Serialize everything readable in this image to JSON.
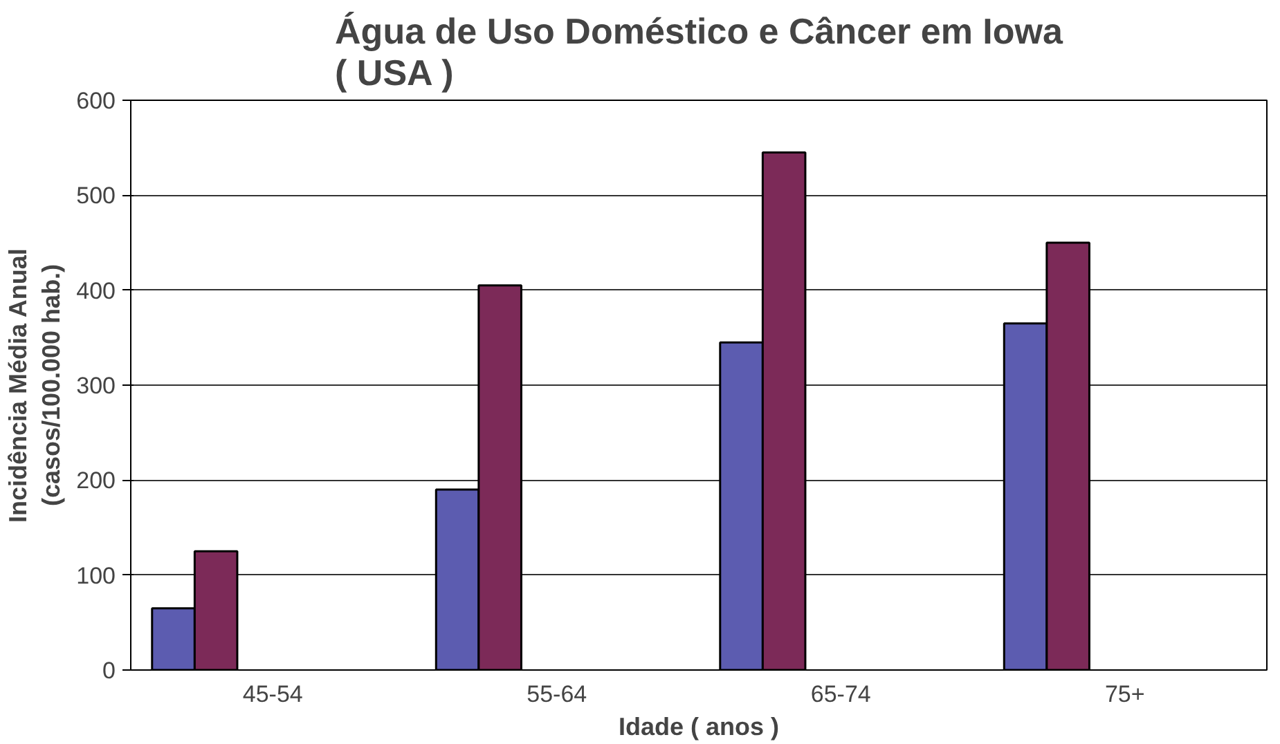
{
  "chart_data": {
    "type": "bar",
    "title": "Água de Uso Doméstico e Câncer em Iowa\n( USA )",
    "xlabel": "Idade ( anos )",
    "ylabel": "Incidência Média Anual\n(casos/100.000 hab.)",
    "categories": [
      "45-54",
      "55-64",
      "65-74",
      "75+"
    ],
    "series": [
      {
        "color": "#5c5cb0",
        "values": [
          65,
          190,
          345,
          365
        ]
      },
      {
        "color": "#7c2a58",
        "values": [
          125,
          405,
          545,
          450
        ]
      }
    ],
    "ylim": [
      0,
      600
    ],
    "yticks": [
      0,
      100,
      200,
      300,
      400,
      500,
      600
    ],
    "grid": "y"
  }
}
